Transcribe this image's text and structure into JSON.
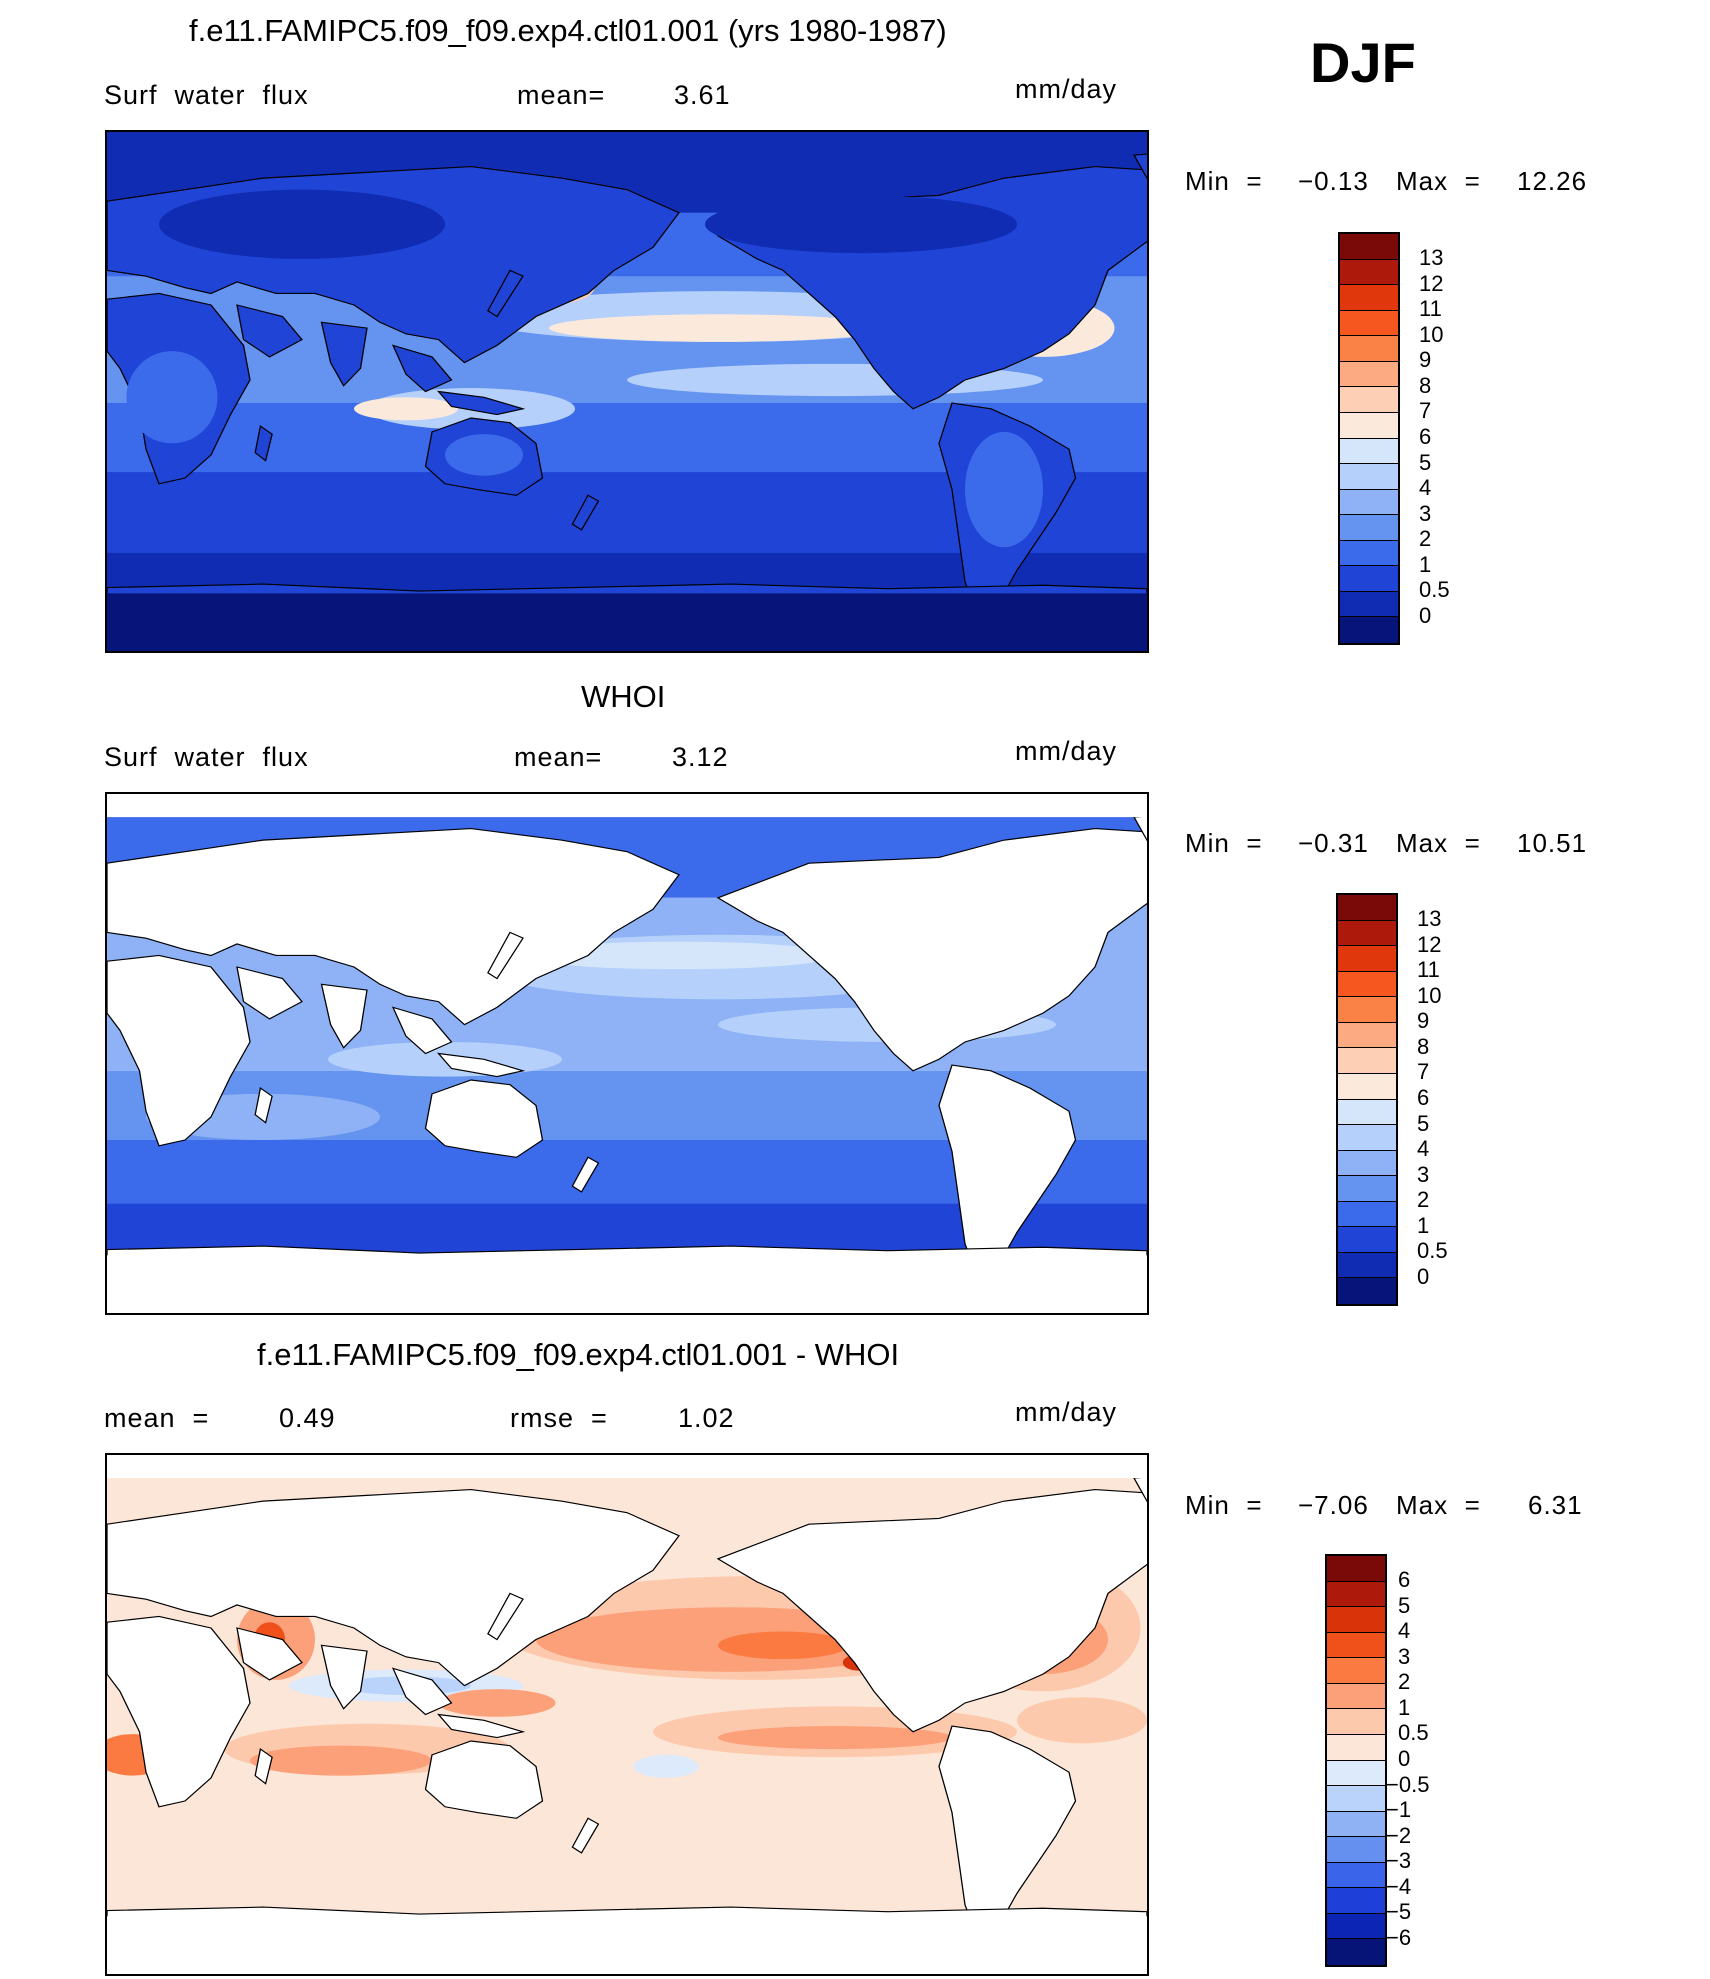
{
  "season": "DJF",
  "panels": [
    {
      "id": "model",
      "title": "f.e11.FAMIPC5.f09_f09.exp4.ctl01.001 (yrs 1980-1987)",
      "left_label": "Surf  water  flux",
      "mid_label": "mean=",
      "mid_value": "3.61",
      "units": "mm/day",
      "min_label": "Min  =",
      "min_value": "−0.13",
      "max_label": "Max  =",
      "max_value": "12.26",
      "colorbar": {
        "labels": [
          "13",
          "12",
          "11",
          "10",
          "9",
          "8",
          "7",
          "6",
          "5",
          "4",
          "3",
          "2",
          "1",
          "0.5",
          "0"
        ],
        "colors": [
          "#7a0a08",
          "#ad1a0c",
          "#e0380c",
          "#f5571e",
          "#fb8247",
          "#fcaa82",
          "#fdd0b5",
          "#fbe9dc",
          "#d5e6fb",
          "#b4d0fb",
          "#8eb2f5",
          "#6493f0",
          "#3b6aeb",
          "#1f44d6",
          "#0f2cb3",
          "#07157a"
        ]
      },
      "land_masked": false
    },
    {
      "id": "obs",
      "title": "WHOI",
      "left_label": "Surf  water  flux",
      "mid_label": "mean=",
      "mid_value": "3.12",
      "units": "mm/day",
      "min_label": "Min  =",
      "min_value": "−0.31",
      "max_label": "Max  =",
      "max_value": "10.51",
      "colorbar": {
        "labels": [
          "13",
          "12",
          "11",
          "10",
          "9",
          "8",
          "7",
          "6",
          "5",
          "4",
          "3",
          "2",
          "1",
          "0.5",
          "0"
        ],
        "colors": [
          "#7a0a08",
          "#ad1a0c",
          "#e0380c",
          "#f5571e",
          "#fb8247",
          "#fcaa82",
          "#fdd0b5",
          "#fbe9dc",
          "#d5e6fb",
          "#b4d0fb",
          "#8eb2f5",
          "#6493f0",
          "#3b6aeb",
          "#1f44d6",
          "#0f2cb3",
          "#07157a"
        ]
      },
      "land_masked": true
    },
    {
      "id": "diff",
      "title": "f.e11.FAMIPC5.f09_f09.exp4.ctl01.001 - WHOI",
      "left_label": "mean  =",
      "left_value": "0.49",
      "mid_label": "rmse  =",
      "mid_value": "1.02",
      "units": "mm/day",
      "min_label": "Min  =",
      "min_value": "−7.06",
      "max_label": "Max  =",
      "max_value": "6.31",
      "colorbar": {
        "labels": [
          "6",
          "5",
          "4",
          "3",
          "2",
          "1",
          "0.5",
          "0",
          "−0.5",
          "−1",
          "−2",
          "−3",
          "−4",
          "−5",
          "−6"
        ],
        "colors": [
          "#7a0a08",
          "#ad1a0c",
          "#d9330a",
          "#f05019",
          "#fa7a42",
          "#fca07a",
          "#fdc9ad",
          "#fce6d8",
          "#dceafc",
          "#b9d3fb",
          "#8fb2f5",
          "#6590f0",
          "#3a64ea",
          "#1e3fd8",
          "#0c25b4",
          "#061478"
        ]
      },
      "land_masked": true
    }
  ]
}
